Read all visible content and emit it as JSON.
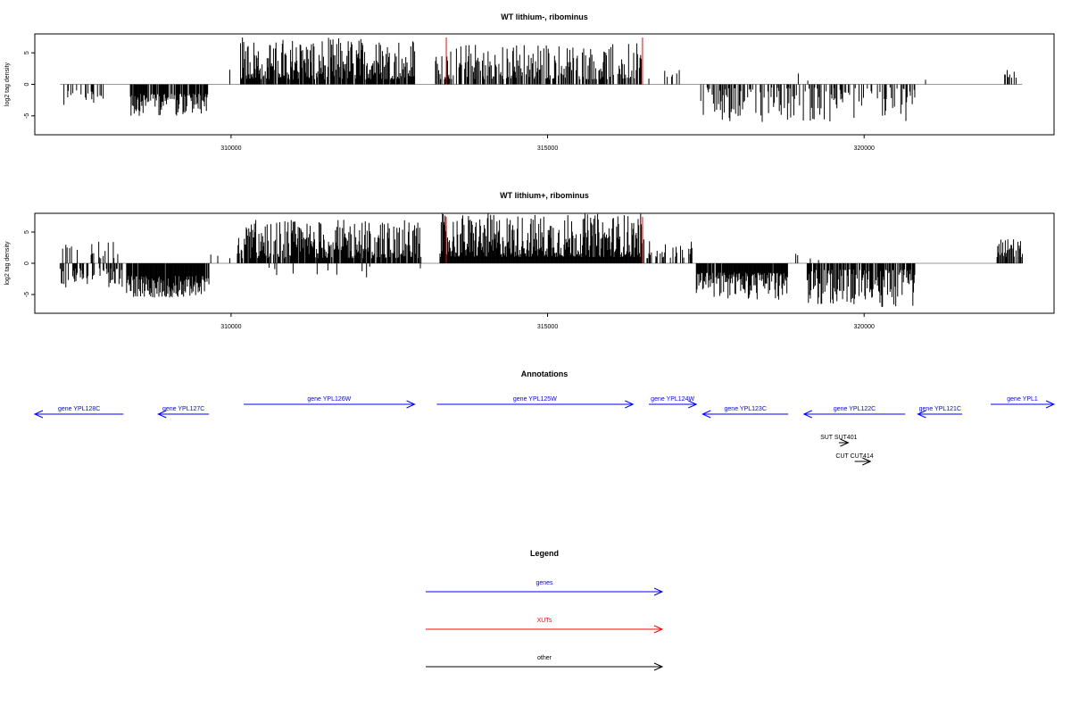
{
  "chart_data": [
    {
      "type": "bar",
      "title": "WT lithium-, ribominus",
      "ylabel": "log2 tag density",
      "xlim": [
        306900,
        323000
      ],
      "ylim": [
        -8,
        8
      ],
      "x_ticks": [
        310000,
        315000,
        320000
      ],
      "x_tick_labels": [
        "310000",
        "315000",
        "320000"
      ],
      "y_ticks": [
        -5,
        0,
        5
      ],
      "y_tick_labels": [
        "-5",
        "0",
        "5"
      ],
      "grid": false,
      "highlight_lines_color": "#ff0000",
      "highlight_lines_x": [
        313400,
        316500
      ],
      "signal_segments": [
        {
          "from": 307300,
          "to": 308000,
          "sign": -1,
          "min": 0.8,
          "max": 3.8,
          "density": 0.3
        },
        {
          "from": 308400,
          "to": 309650,
          "sign": -1,
          "min": 1.5,
          "max": 5.0,
          "density": 0.8
        },
        {
          "from": 309900,
          "to": 310000,
          "sign": 1,
          "min": 0.8,
          "max": 3.0,
          "density": 0.2
        },
        {
          "from": 310150,
          "to": 312900,
          "sign": 1,
          "min": 0.8,
          "max": 7.5,
          "density": 0.85
        },
        {
          "from": 313200,
          "to": 316500,
          "sign": 1,
          "min": 0.8,
          "max": 6.5,
          "density": 0.6
        },
        {
          "from": 316500,
          "to": 317100,
          "sign": 1,
          "min": 0.8,
          "max": 3.5,
          "density": 0.15
        },
        {
          "from": 317300,
          "to": 320800,
          "sign": -1,
          "min": 0.5,
          "max": 6.0,
          "density": 0.35
        },
        {
          "from": 318800,
          "to": 319300,
          "sign": 1,
          "min": 0.5,
          "max": 2.8,
          "density": 0.05
        },
        {
          "from": 320900,
          "to": 321000,
          "sign": 1,
          "min": 0.5,
          "max": 1.0,
          "density": 0.1
        },
        {
          "from": 322200,
          "to": 322500,
          "sign": 1,
          "min": 1.0,
          "max": 2.5,
          "density": 0.2
        }
      ]
    },
    {
      "type": "bar",
      "title": "WT lithium+, ribominus",
      "ylabel": "log2 tag density",
      "xlim": [
        306900,
        323000
      ],
      "ylim": [
        -8,
        8
      ],
      "x_ticks": [
        310000,
        315000,
        320000
      ],
      "x_tick_labels": [
        "310000",
        "315000",
        "320000"
      ],
      "y_ticks": [
        -5,
        0,
        5
      ],
      "y_tick_labels": [
        "-5",
        "0",
        "5"
      ],
      "grid": false,
      "highlight_lines_color": "#ff0000",
      "highlight_lines_x": [
        313400,
        316500
      ],
      "signal_segments": [
        {
          "from": 307300,
          "to": 308300,
          "sign": -1,
          "min": 0.8,
          "max": 4.0,
          "density": 0.5
        },
        {
          "from": 307300,
          "to": 308300,
          "sign": 1,
          "min": 0.8,
          "max": 3.5,
          "density": 0.15
        },
        {
          "from": 308350,
          "to": 309650,
          "sign": -1,
          "min": 2.0,
          "max": 5.5,
          "density": 0.95
        },
        {
          "from": 309650,
          "to": 310000,
          "sign": 1,
          "min": 0.8,
          "max": 1.5,
          "density": 0.1
        },
        {
          "from": 310100,
          "to": 313000,
          "sign": 1,
          "min": 0.8,
          "max": 7.0,
          "density": 0.85
        },
        {
          "from": 310100,
          "to": 313000,
          "sign": -1,
          "min": 0.5,
          "max": 3.0,
          "density": 0.05
        },
        {
          "from": 313300,
          "to": 316500,
          "sign": 1,
          "min": 1.0,
          "max": 8.0,
          "density": 1.0
        },
        {
          "from": 316500,
          "to": 317300,
          "sign": 1,
          "min": 0.8,
          "max": 4.0,
          "density": 0.3
        },
        {
          "from": 317350,
          "to": 318800,
          "sign": -1,
          "min": 1.5,
          "max": 6.0,
          "density": 0.95
        },
        {
          "from": 318900,
          "to": 319300,
          "sign": 1,
          "min": 0.5,
          "max": 1.8,
          "density": 0.1
        },
        {
          "from": 319100,
          "to": 320800,
          "sign": -1,
          "min": 1.0,
          "max": 7.0,
          "density": 0.75
        },
        {
          "from": 322100,
          "to": 322500,
          "sign": 1,
          "min": 1.0,
          "max": 4.0,
          "density": 0.8
        }
      ]
    }
  ],
  "annotations": {
    "title": "Annotations",
    "axis_range": [
      306900,
      323000
    ],
    "items": [
      {
        "label": "gene YPL128C",
        "from": 306900,
        "to": 308300,
        "strand": "-",
        "row": 0,
        "category": "genes"
      },
      {
        "label": "gene YPL127C",
        "from": 308850,
        "to": 309650,
        "strand": "-",
        "row": 0,
        "category": "genes"
      },
      {
        "label": "gene YPL126W",
        "from": 310200,
        "to": 312900,
        "strand": "+",
        "row": 1,
        "category": "genes"
      },
      {
        "label": "gene YPL125W",
        "from": 313250,
        "to": 316350,
        "strand": "+",
        "row": 1,
        "category": "genes"
      },
      {
        "label": "gene YPL124W",
        "from": 316600,
        "to": 317350,
        "strand": "+",
        "row": 1,
        "category": "genes"
      },
      {
        "label": "gene YPL123C",
        "from": 317450,
        "to": 318800,
        "strand": "-",
        "row": 0,
        "category": "genes"
      },
      {
        "label": "gene YPL122C",
        "from": 319050,
        "to": 320650,
        "strand": "-",
        "row": 0,
        "category": "genes"
      },
      {
        "label": "gene YPL121C",
        "from": 320850,
        "to": 321550,
        "strand": "-",
        "row": 0,
        "category": "genes"
      },
      {
        "label": "gene YPL1",
        "from": 322000,
        "to": 323000,
        "strand": "+",
        "row": 1,
        "category": "genes"
      },
      {
        "label": "SUT SUT401",
        "from": 319600,
        "to": 319750,
        "strand": "+",
        "row": 2,
        "category": "other"
      },
      {
        "label": "CUT CUT414",
        "from": 319850,
        "to": 320100,
        "strand": "+",
        "row": 3,
        "category": "other"
      }
    ]
  },
  "legend": {
    "title": "Legend",
    "entries": [
      {
        "label": "genes",
        "color": "#0000ff"
      },
      {
        "label": "XUTs",
        "color": "#ff0000"
      },
      {
        "label": "other",
        "color": "#000000"
      }
    ]
  }
}
